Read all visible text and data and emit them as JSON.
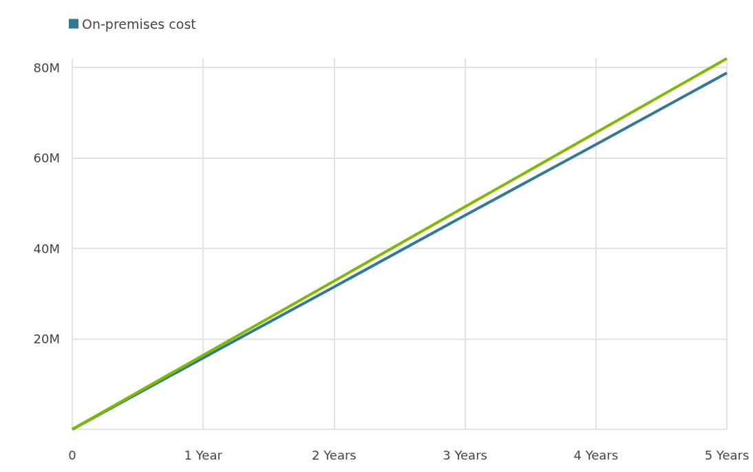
{
  "chart_data": {
    "type": "line",
    "x": [
      0,
      1,
      2,
      3,
      4,
      5
    ],
    "series": [
      {
        "name": "On-premises cost",
        "color": "#31799a",
        "values": [
          0,
          15.8,
          31.5,
          47.3,
          63,
          78.8
        ]
      },
      {
        "color": "#7fba00",
        "values": [
          0,
          16.4,
          32.8,
          49.2,
          65.6,
          82
        ]
      }
    ],
    "xlim": [
      0,
      5
    ],
    "xticks": [
      0,
      {
        "value": 1,
        "label": "1 Year"
      },
      {
        "value": 2,
        "label": "2 Years"
      },
      {
        "value": 3,
        "label": "3 Years"
      },
      {
        "value": 4,
        "label": "4 Years"
      },
      {
        "value": 5,
        "label": "5 Years"
      }
    ],
    "ylim": [
      0,
      82
    ],
    "yticks": [
      {
        "value": 0,
        "label": null
      },
      {
        "value": 20,
        "label": "20M"
      },
      {
        "value": 40,
        "label": "40M"
      },
      {
        "value": 60,
        "label": "60M"
      },
      {
        "value": 80,
        "label": "80M"
      }
    ],
    "grid": true,
    "legend": "top left",
    "marker": "none",
    "line_style": "solid"
  }
}
